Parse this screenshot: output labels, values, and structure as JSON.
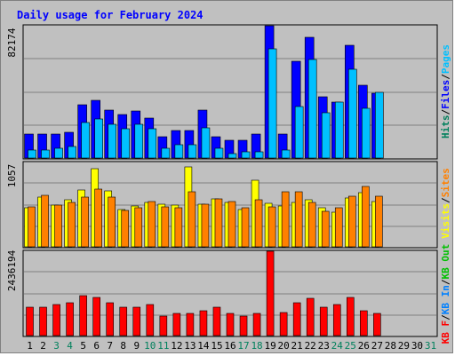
{
  "title": "Daily usage for February 2024",
  "colors": {
    "background": "#c0c0c0",
    "hits": "#00805c",
    "files": "#0000ff",
    "pages": "#00c0ff",
    "visits": "#ffff00",
    "sites": "#ff8000",
    "kb_out": "#00c000",
    "kb_in": "#0080ff",
    "kb_f": "#ff0000",
    "weekend_day": "#00805c",
    "weekday": "#000000"
  },
  "chart_data": [
    {
      "type": "bar",
      "panel": "top",
      "scale_label": "82174",
      "ymax": 82174,
      "legend_right": [
        {
          "text": "Hits",
          "color": "#00805c"
        },
        {
          "text": "/",
          "color": "#000000"
        },
        {
          "text": "Files",
          "color": "#0000ff"
        },
        {
          "text": "/",
          "color": "#000000"
        },
        {
          "text": "Pages",
          "color": "#00c0ff"
        }
      ],
      "series": [
        {
          "name": "Hits",
          "values": [
            15000,
            15000,
            15000,
            16000,
            33000,
            36000,
            30000,
            27000,
            29000,
            25000,
            13000,
            17000,
            17000,
            30000,
            13000,
            11000,
            11000,
            15000,
            82000,
            15000,
            60000,
            75000,
            38000,
            35000,
            70000,
            45000,
            40000,
            0,
            0
          ]
        },
        {
          "name": "Files",
          "values": [
            15000,
            15000,
            15000,
            16000,
            33000,
            36000,
            30000,
            27000,
            29000,
            25000,
            13000,
            17000,
            17000,
            30000,
            13000,
            11000,
            11000,
            15000,
            82000,
            15000,
            60000,
            75000,
            38000,
            35000,
            70000,
            45000,
            40000,
            0,
            0
          ]
        },
        {
          "name": "Pages",
          "values": [
            5000,
            5000,
            6000,
            7000,
            22000,
            24000,
            21000,
            18000,
            21000,
            18000,
            6000,
            8000,
            8000,
            19000,
            6000,
            3000,
            4000,
            4000,
            68000,
            5000,
            32000,
            61000,
            28000,
            35000,
            55000,
            31000,
            41000,
            0,
            0
          ]
        }
      ]
    },
    {
      "type": "bar",
      "panel": "middle",
      "scale_label": "1057",
      "ymax": 1057,
      "legend_right": [
        {
          "text": "Visits",
          "color": "#ffff00"
        },
        {
          "text": "/",
          "color": "#000000"
        },
        {
          "text": "Sites",
          "color": "#ff8000"
        }
      ],
      "series": [
        {
          "name": "Visits",
          "values": [
            490,
            620,
            520,
            590,
            710,
            980,
            700,
            470,
            510,
            560,
            530,
            520,
            1000,
            530,
            600,
            560,
            470,
            830,
            550,
            510,
            560,
            590,
            490,
            430,
            610,
            680,
            570,
            0,
            0
          ]
        },
        {
          "name": "Sites",
          "values": [
            500,
            640,
            520,
            560,
            620,
            720,
            620,
            460,
            490,
            570,
            500,
            490,
            690,
            530,
            600,
            570,
            490,
            590,
            500,
            690,
            690,
            560,
            440,
            490,
            630,
            760,
            630,
            0,
            0
          ]
        }
      ]
    },
    {
      "type": "bar",
      "panel": "bottom",
      "scale_label": "2436194",
      "ymax": 2436194,
      "legend_right": [
        {
          "text": "KB F",
          "color": "#ff0000"
        },
        {
          "text": "/",
          "color": "#000000"
        },
        {
          "text": "KB In",
          "color": "#0080ff"
        },
        {
          "text": "/",
          "color": "#000000"
        },
        {
          "text": "KB Out",
          "color": "#00c000"
        }
      ],
      "series": [
        {
          "name": "KB F",
          "values": [
            820000,
            820000,
            890000,
            960000,
            1150000,
            1110000,
            960000,
            820000,
            820000,
            890000,
            570000,
            640000,
            640000,
            710000,
            820000,
            640000,
            570000,
            640000,
            2436194,
            670000,
            960000,
            1070000,
            820000,
            890000,
            1110000,
            710000,
            640000,
            0,
            0
          ]
        }
      ]
    }
  ],
  "x_axis": {
    "days": [
      "1",
      "2",
      "3",
      "4",
      "5",
      "6",
      "7",
      "8",
      "9",
      "10",
      "11",
      "12",
      "13",
      "14",
      "15",
      "16",
      "17",
      "18",
      "19",
      "20",
      "21",
      "22",
      "23",
      "24",
      "25",
      "26",
      "27",
      "28",
      "29",
      "30",
      "31"
    ],
    "weekend": [
      3,
      4,
      10,
      11,
      17,
      18,
      24,
      25,
      31
    ]
  }
}
